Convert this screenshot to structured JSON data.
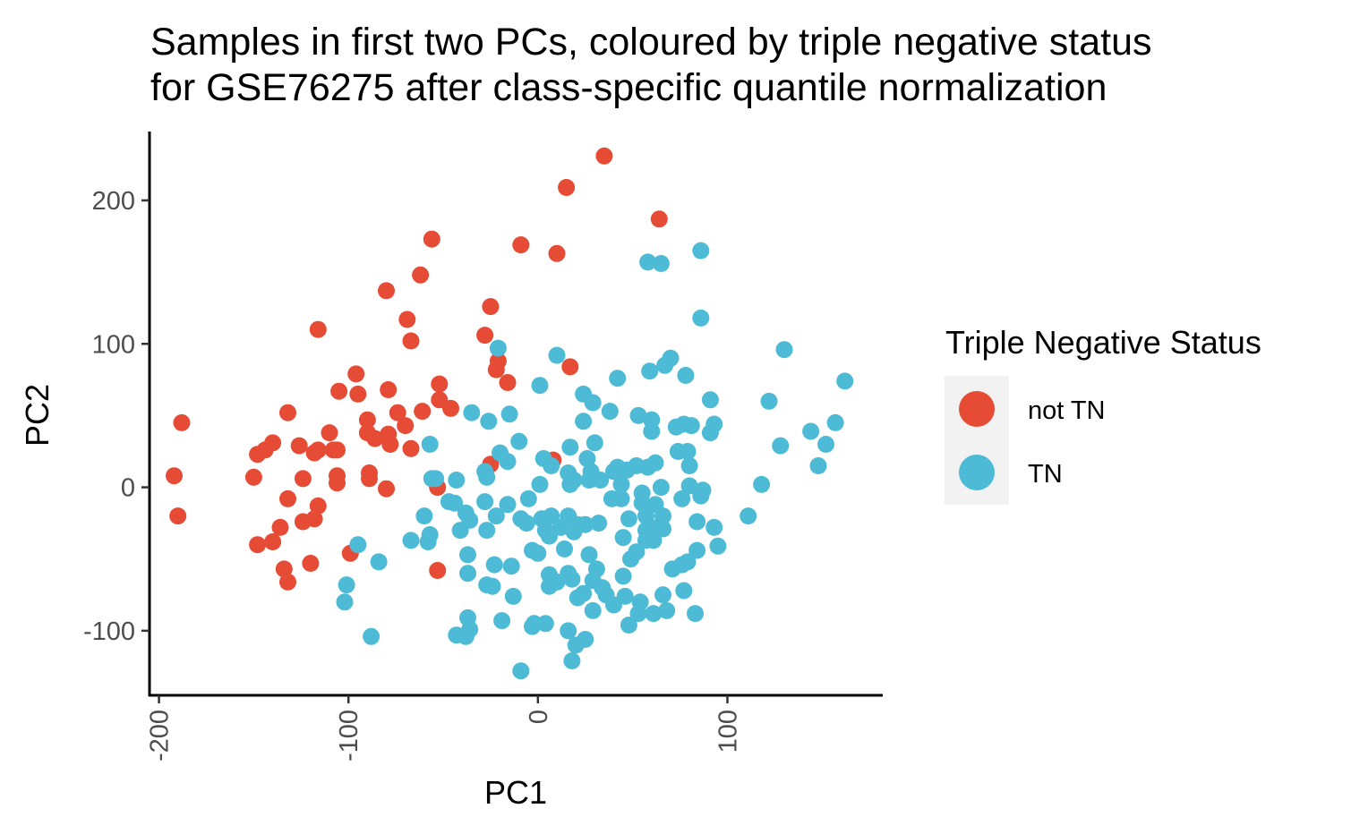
{
  "chart_data": {
    "type": "scatter",
    "title": [
      "Samples in first two PCs, coloured by triple negative status",
      "for GSE76275 after class-specific quantile normalization"
    ],
    "xlabel": "PC1",
    "ylabel": "PC2",
    "xlim": [
      -205,
      182
    ],
    "ylim": [
      -145,
      248
    ],
    "xticks": [
      -200,
      -100,
      0,
      100
    ],
    "yticks": [
      -100,
      0,
      100,
      200
    ],
    "xtick_labels": [
      "-200",
      "-100",
      "0",
      "100"
    ],
    "ytick_labels": [
      "-100",
      "0",
      "100",
      "200"
    ],
    "grid": false,
    "legend": {
      "title": "Triple Negative Status",
      "position": "right",
      "entries": [
        {
          "label": "not TN",
          "color": "#E64B35"
        },
        {
          "label": "TN",
          "color": "#4DBBD5"
        }
      ]
    },
    "series": [
      {
        "name": "not TN",
        "color": "#E64B35",
        "points": [
          [
            35,
            231
          ],
          [
            15,
            209
          ],
          [
            64,
            187
          ],
          [
            -56,
            173
          ],
          [
            -9,
            169
          ],
          [
            10,
            163
          ],
          [
            -62,
            148
          ],
          [
            -80,
            137
          ],
          [
            -25,
            126
          ],
          [
            -116,
            110
          ],
          [
            -69,
            117
          ],
          [
            -67,
            102
          ],
          [
            -28,
            106
          ],
          [
            -21,
            88
          ],
          [
            -22,
            82
          ],
          [
            17,
            84
          ],
          [
            -96,
            79
          ],
          [
            -52,
            72
          ],
          [
            -16,
            73
          ],
          [
            -105,
            67
          ],
          [
            -95,
            65
          ],
          [
            -79,
            68
          ],
          [
            -61,
            53
          ],
          [
            -52,
            61
          ],
          [
            -46,
            55
          ],
          [
            -132,
            52
          ],
          [
            -188,
            45
          ],
          [
            -74,
            52
          ],
          [
            -90,
            47
          ],
          [
            -70,
            43
          ],
          [
            -140,
            31
          ],
          [
            -126,
            29
          ],
          [
            -110,
            38
          ],
          [
            -90,
            38
          ],
          [
            -86,
            34
          ],
          [
            -148,
            23
          ],
          [
            -144,
            26
          ],
          [
            -116,
            26
          ],
          [
            -108,
            26
          ],
          [
            -106,
            26
          ],
          [
            -118,
            24
          ],
          [
            -79,
            37
          ],
          [
            -78,
            30
          ],
          [
            -67,
            27
          ],
          [
            -192,
            8
          ],
          [
            -150,
            7
          ],
          [
            -124,
            6
          ],
          [
            -106,
            8
          ],
          [
            -106,
            3
          ],
          [
            -89,
            10
          ],
          [
            -89,
            6
          ],
          [
            -53,
            0
          ],
          [
            -80,
            -1
          ],
          [
            -25,
            16
          ],
          [
            8,
            19
          ],
          [
            -132,
            -8
          ],
          [
            -116,
            -13
          ],
          [
            -190,
            -20
          ],
          [
            -118,
            -22
          ],
          [
            -124,
            -24
          ],
          [
            -136,
            -28
          ],
          [
            -148,
            -40
          ],
          [
            -140,
            -38
          ],
          [
            -99,
            -46
          ],
          [
            -134,
            -57
          ],
          [
            -120,
            -53
          ],
          [
            -53,
            -58
          ],
          [
            -132,
            -66
          ]
        ]
      },
      {
        "name": "TN",
        "color": "#4DBBD5",
        "points": [
          [
            86,
            165
          ],
          [
            58,
            157
          ],
          [
            65,
            156
          ],
          [
            86,
            118
          ],
          [
            130,
            96
          ],
          [
            -21,
            97
          ],
          [
            10,
            92
          ],
          [
            70,
            90
          ],
          [
            67,
            85
          ],
          [
            59,
            81
          ],
          [
            78,
            78
          ],
          [
            42,
            76
          ],
          [
            1,
            71
          ],
          [
            24,
            65
          ],
          [
            91,
            61
          ],
          [
            29,
            59
          ],
          [
            122,
            60
          ],
          [
            162,
            74
          ],
          [
            -35,
            52
          ],
          [
            38,
            53
          ],
          [
            -15,
            51
          ],
          [
            53,
            50
          ],
          [
            60,
            47
          ],
          [
            24,
            46
          ],
          [
            -26,
            46
          ],
          [
            73,
            42
          ],
          [
            77,
            44
          ],
          [
            81,
            43
          ],
          [
            93,
            44
          ],
          [
            60,
            39
          ],
          [
            91,
            38
          ],
          [
            -57,
            30
          ],
          [
            -10,
            32
          ],
          [
            17,
            28
          ],
          [
            30,
            31
          ],
          [
            144,
            39
          ],
          [
            152,
            30
          ],
          [
            157,
            45
          ],
          [
            128,
            29
          ],
          [
            -20,
            24
          ],
          [
            -16,
            18
          ],
          [
            26,
            20
          ],
          [
            3,
            20
          ],
          [
            7,
            15
          ],
          [
            42,
            14
          ],
          [
            52,
            15
          ],
          [
            47,
            12
          ],
          [
            58,
            14
          ],
          [
            62,
            17
          ],
          [
            74,
            25
          ],
          [
            79,
            25
          ],
          [
            80,
            15
          ],
          [
            -28,
            11
          ],
          [
            -27,
            7
          ],
          [
            16,
            10
          ],
          [
            28,
            11
          ],
          [
            40,
            11
          ],
          [
            -56,
            6
          ],
          [
            -54,
            6
          ],
          [
            -43,
            5
          ],
          [
            19,
            5
          ],
          [
            27,
            5
          ],
          [
            33,
            5
          ],
          [
            17,
            2
          ],
          [
            1,
            2
          ],
          [
            44,
            2
          ],
          [
            65,
            0
          ],
          [
            80,
            1
          ],
          [
            87,
            -2
          ],
          [
            148,
            15
          ],
          [
            118,
            2
          ],
          [
            86,
            -6
          ],
          [
            55,
            -4
          ],
          [
            -47,
            -10
          ],
          [
            -44,
            -11
          ],
          [
            -60,
            -20
          ],
          [
            -28,
            -10
          ],
          [
            -16,
            -12
          ],
          [
            -5,
            -8
          ],
          [
            39,
            -8
          ],
          [
            44,
            -8
          ],
          [
            55,
            -11
          ],
          [
            62,
            -12
          ],
          [
            76,
            -8
          ],
          [
            -38,
            -18
          ],
          [
            -36,
            -23
          ],
          [
            -22,
            -20
          ],
          [
            7,
            -20
          ],
          [
            2,
            -22
          ],
          [
            -9,
            -22
          ],
          [
            -6,
            -25
          ],
          [
            16,
            -20
          ],
          [
            21,
            -26
          ],
          [
            25,
            -26
          ],
          [
            32,
            -25
          ],
          [
            48,
            -22
          ],
          [
            57,
            -20
          ],
          [
            66,
            -20
          ],
          [
            84,
            -24
          ],
          [
            111,
            -20
          ],
          [
            93,
            -28
          ],
          [
            -41,
            -30
          ],
          [
            -27,
            -30
          ],
          [
            4,
            -30
          ],
          [
            6,
            -34
          ],
          [
            12,
            -28
          ],
          [
            19,
            -31
          ],
          [
            45,
            -35
          ],
          [
            57,
            -30
          ],
          [
            63,
            -28
          ],
          [
            66,
            -29
          ],
          [
            -57,
            -33
          ],
          [
            -58,
            -38
          ],
          [
            -67,
            -37
          ],
          [
            -95,
            -40
          ],
          [
            -37,
            -47
          ],
          [
            -3,
            -44
          ],
          [
            0,
            -46
          ],
          [
            14,
            -43
          ],
          [
            27,
            -47
          ],
          [
            52,
            -45
          ],
          [
            49,
            -50
          ],
          [
            57,
            -37
          ],
          [
            61,
            -37
          ],
          [
            84,
            -44
          ],
          [
            95,
            -41
          ],
          [
            -84,
            -52
          ],
          [
            -23,
            -54
          ],
          [
            -37,
            -60
          ],
          [
            -14,
            -55
          ],
          [
            6,
            -61
          ],
          [
            16,
            -60
          ],
          [
            31,
            -57
          ],
          [
            45,
            -62
          ],
          [
            79,
            -52
          ],
          [
            76,
            -54
          ],
          [
            71,
            -57
          ],
          [
            -101,
            -68
          ],
          [
            -27,
            -68
          ],
          [
            -24,
            -69
          ],
          [
            -13,
            -76
          ],
          [
            6,
            -69
          ],
          [
            10,
            -66
          ],
          [
            18,
            -64
          ],
          [
            29,
            -65
          ],
          [
            34,
            -70
          ],
          [
            36,
            -75
          ],
          [
            40,
            -82
          ],
          [
            24,
            -74
          ],
          [
            21,
            -77
          ],
          [
            29,
            -86
          ],
          [
            46,
            -76
          ],
          [
            54,
            -80
          ],
          [
            48,
            -96
          ],
          [
            53,
            -88
          ],
          [
            61,
            -88
          ],
          [
            66,
            -75
          ],
          [
            77,
            -72
          ],
          [
            68,
            -86
          ],
          [
            83,
            -88
          ],
          [
            -102,
            -80
          ],
          [
            -88,
            -104
          ],
          [
            -37,
            -91
          ],
          [
            -36,
            -99
          ],
          [
            -38,
            -104
          ],
          [
            -43,
            -103
          ],
          [
            -19,
            -93
          ],
          [
            -2,
            -95
          ],
          [
            -3,
            -97
          ],
          [
            4,
            -95
          ],
          [
            16,
            -100
          ],
          [
            20,
            -110
          ],
          [
            25,
            -106
          ],
          [
            18,
            -121
          ],
          [
            -9,
            -128
          ]
        ]
      }
    ]
  }
}
